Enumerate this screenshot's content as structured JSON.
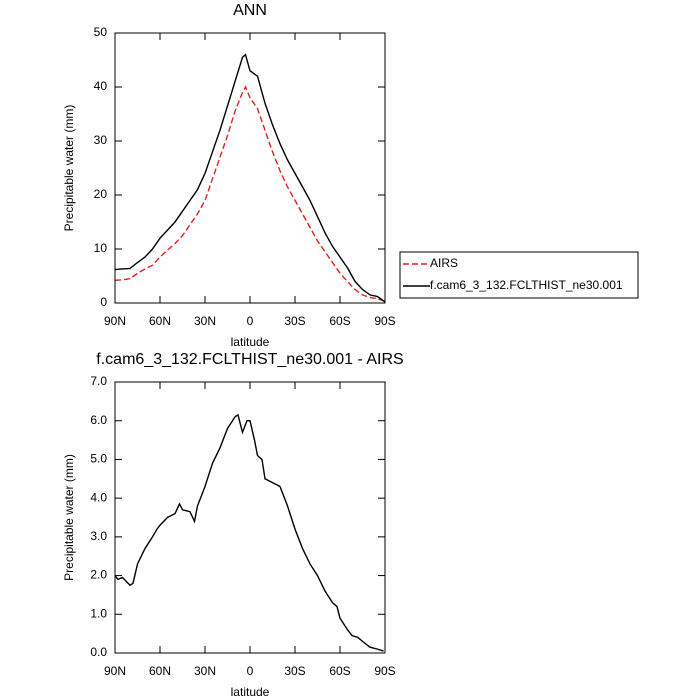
{
  "chart_data": [
    {
      "type": "line",
      "title": "ANN",
      "xlabel": "latitude",
      "ylabel": "Precipitable water (mm)",
      "x": [
        90,
        85,
        80,
        75,
        70,
        65,
        60,
        55,
        50,
        45,
        40,
        35,
        30,
        25,
        20,
        15,
        10,
        5,
        3,
        0,
        -5,
        -10,
        -15,
        -20,
        -25,
        -30,
        -35,
        -40,
        -45,
        -50,
        -55,
        -60,
        -65,
        -70,
        -75,
        -80,
        -85,
        -90
      ],
      "series": [
        {
          "name": "AIRS",
          "color": "#e02020",
          "dashed": true,
          "values": [
            4.2,
            4.3,
            4.5,
            5.5,
            6.3,
            7,
            8.5,
            9.8,
            11,
            12.5,
            14.5,
            16.5,
            19,
            23,
            27,
            31,
            35.5,
            39,
            40,
            38,
            36,
            32,
            28,
            24.5,
            21.5,
            19,
            16.5,
            14,
            11.5,
            9.5,
            7.5,
            5.5,
            4,
            2.5,
            1.5,
            1,
            0.8,
            0.3
          ]
        },
        {
          "name": "f.cam6_3_132.FCLTHIST_ne30.001",
          "color": "#000000",
          "dashed": false,
          "values": [
            6.2,
            6.3,
            6.4,
            7.5,
            8.5,
            10,
            12,
            13.5,
            15,
            17,
            19,
            21,
            24,
            28,
            32,
            36.5,
            41,
            45.5,
            46,
            43,
            42,
            37,
            33,
            29.5,
            26.5,
            24,
            21.5,
            19,
            16,
            13,
            10.5,
            8.5,
            6.5,
            4,
            2.5,
            1.5,
            1.2,
            0.2
          ]
        }
      ],
      "xlim": [
        90,
        -90
      ],
      "xticks": [
        {
          "value": 90,
          "label": "90N"
        },
        {
          "value": 60,
          "label": "60N"
        },
        {
          "value": 30,
          "label": "30N"
        },
        0,
        {
          "value": -30,
          "label": "30S"
        },
        {
          "value": -60,
          "label": "60S"
        },
        {
          "value": -90,
          "label": "90S"
        }
      ],
      "ylim": [
        0,
        50
      ],
      "yticks": [
        0,
        10,
        20,
        30,
        40,
        50
      ],
      "legend": "right"
    },
    {
      "type": "line",
      "title": "f.cam6_3_132.FCLTHIST_ne30.001 - AIRS",
      "xlabel": "latitude",
      "ylabel": "Precipitable water (mm)",
      "x": [
        90,
        88,
        85,
        80,
        78,
        75,
        70,
        65,
        62,
        60,
        55,
        50,
        47,
        45,
        40,
        37,
        35,
        30,
        25,
        20,
        15,
        10,
        8,
        5,
        2,
        0,
        -3,
        -5,
        -8,
        -10,
        -15,
        -20,
        -25,
        -30,
        -35,
        -40,
        -45,
        -50,
        -55,
        -58,
        -60,
        -65,
        -68,
        -72,
        -75,
        -80,
        -85,
        -89
      ],
      "series": [
        {
          "name": "f.cam6_3_132.FCLTHIST_ne30.001 - AIRS",
          "color": "#000000",
          "dashed": false,
          "values": [
            2.0,
            1.9,
            1.95,
            1.75,
            1.8,
            2.3,
            2.7,
            3.0,
            3.2,
            3.3,
            3.5,
            3.6,
            3.85,
            3.7,
            3.65,
            3.4,
            3.8,
            4.3,
            4.9,
            5.3,
            5.8,
            6.1,
            6.15,
            5.7,
            6.0,
            6.0,
            5.5,
            5.1,
            5.0,
            4.5,
            4.4,
            4.3,
            3.8,
            3.2,
            2.7,
            2.3,
            2.0,
            1.6,
            1.3,
            1.2,
            0.9,
            0.6,
            0.45,
            0.4,
            0.3,
            0.15,
            0.1,
            0.05
          ]
        }
      ],
      "xlim": [
        90,
        -90
      ],
      "xticks": [
        {
          "value": 90,
          "label": "90N"
        },
        {
          "value": 60,
          "label": "60N"
        },
        {
          "value": 30,
          "label": "30N"
        },
        0,
        {
          "value": -30,
          "label": "30S"
        },
        {
          "value": -60,
          "label": "60S"
        },
        {
          "value": -90,
          "label": "90S"
        }
      ],
      "ylim": [
        0,
        7
      ],
      "yticks": [
        {
          "value": 0,
          "label": "0.0"
        },
        {
          "value": 1,
          "label": "1.0"
        },
        {
          "value": 2,
          "label": "2.0"
        },
        {
          "value": 3,
          "label": "3.0"
        },
        {
          "value": 4,
          "label": "4.0"
        },
        {
          "value": 5,
          "label": "5.0"
        },
        {
          "value": 6,
          "label": "6.0"
        },
        {
          "value": 7,
          "label": "7.0"
        }
      ]
    }
  ]
}
